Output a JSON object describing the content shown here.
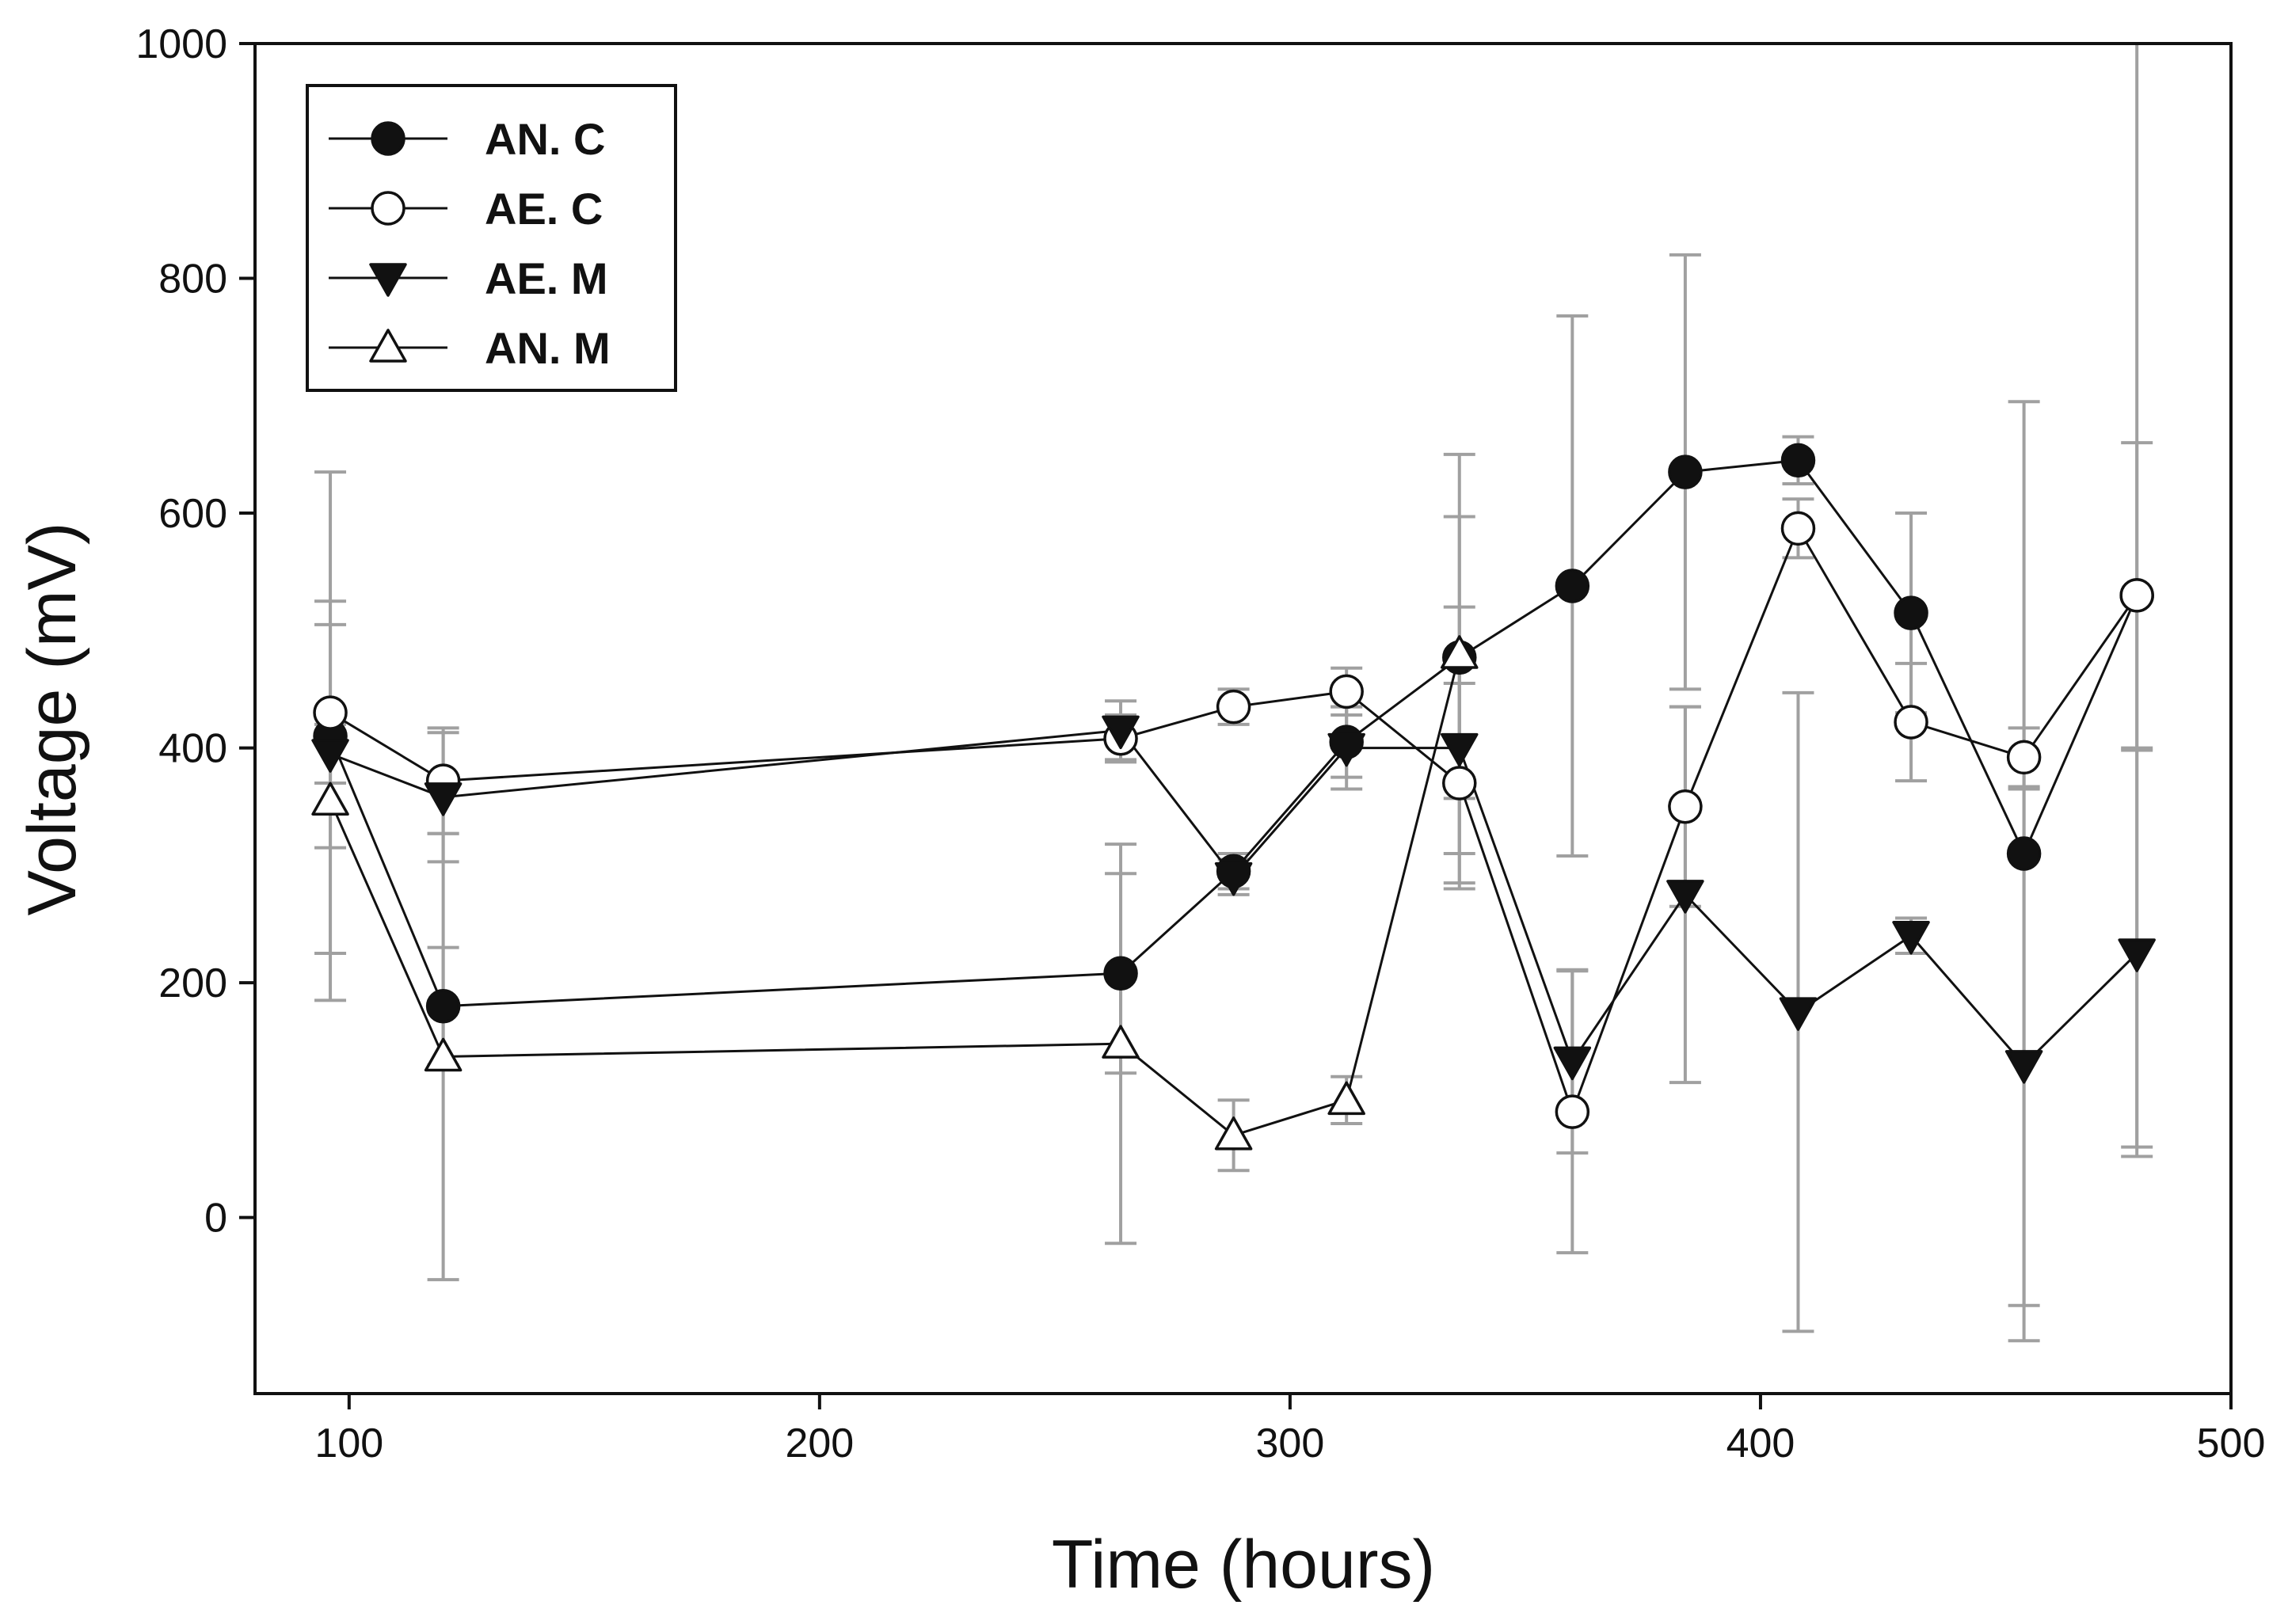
{
  "chart_data": {
    "type": "line",
    "title": "",
    "xlabel": "Time (hours)",
    "ylabel": "Voltage (mV)",
    "xlim": [
      80,
      500
    ],
    "ylim": [
      -150,
      1000
    ],
    "xticks": [
      100,
      200,
      300,
      400,
      500
    ],
    "yticks": [
      0,
      200,
      400,
      600,
      800,
      1000
    ],
    "xtick_labels": [
      "100",
      "200",
      "300",
      "400",
      "500"
    ],
    "ytick_labels": [
      "0",
      "200",
      "400",
      "600",
      "800",
      "1000"
    ],
    "grid": false,
    "legend_position": "top-left",
    "series": [
      {
        "name": "AN. C",
        "marker": "filled-circle",
        "x": [
          96,
          120,
          264,
          288,
          312,
          336,
          360,
          384,
          408,
          432,
          456,
          480
        ],
        "y": [
          410,
          180,
          208,
          295,
          405,
          477,
          538,
          635,
          645,
          515,
          310,
          530
        ],
        "err": [
          95,
          50,
          85,
          15,
          30,
          120,
          230,
          185,
          20,
          85,
          385,
          470
        ]
      },
      {
        "name": "AE. C",
        "marker": "open-circle",
        "x": [
          96,
          120,
          264,
          288,
          312,
          336,
          360,
          384,
          408,
          432,
          456,
          480
        ],
        "y": [
          430,
          372,
          408,
          435,
          448,
          370,
          90,
          350,
          587,
          422,
          392,
          530
        ],
        "err": [
          205,
          45,
          20,
          15,
          20,
          85,
          120,
          85,
          25,
          50,
          25,
          130
        ]
      },
      {
        "name": "AE. M",
        "marker": "filled-triangle-down",
        "x": [
          96,
          120,
          264,
          288,
          312,
          336,
          360,
          384,
          408,
          432,
          456,
          480
        ],
        "y": [
          395,
          358,
          415,
          290,
          400,
          400,
          133,
          275,
          175,
          240,
          130,
          225
        ],
        "err": [
          25,
          55,
          25,
          15,
          35,
          120,
          78,
          160,
          272,
          15,
          235,
          173
        ]
      },
      {
        "name": "AN. M",
        "marker": "open-triangle-up",
        "x": [
          96,
          120,
          264,
          288,
          312,
          336
        ],
        "y": [
          355,
          137,
          148,
          70,
          100,
          480
        ],
        "err": [
          170,
          190,
          170,
          30,
          20,
          170
        ]
      }
    ]
  }
}
